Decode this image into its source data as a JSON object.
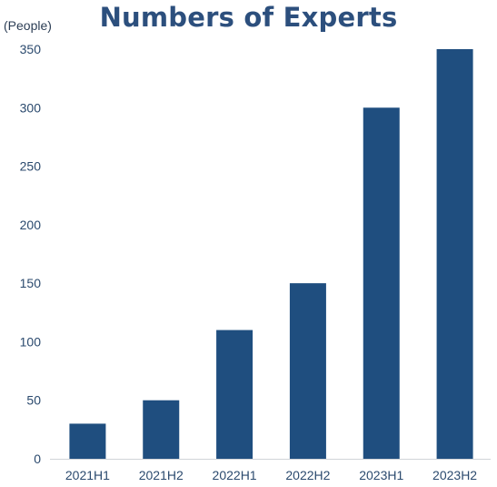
{
  "title": "Numbers of Experts",
  "unit_label": "(People)",
  "colors": {
    "bar": "#1f4e7f",
    "title": "#2c4f7d",
    "axis": "#d0d4d8"
  },
  "chart_data": {
    "type": "bar",
    "title": "Numbers of Experts",
    "ylabel": "(People)",
    "xlabel": "",
    "categories": [
      "2021H1",
      "2021H2",
      "2022H1",
      "2022H2",
      "2023H1",
      "2023H2"
    ],
    "values": [
      30,
      50,
      110,
      150,
      300,
      350
    ],
    "ylim": [
      0,
      350
    ],
    "yticks": [
      0,
      50,
      100,
      150,
      200,
      250,
      300,
      350
    ],
    "grid": false
  }
}
